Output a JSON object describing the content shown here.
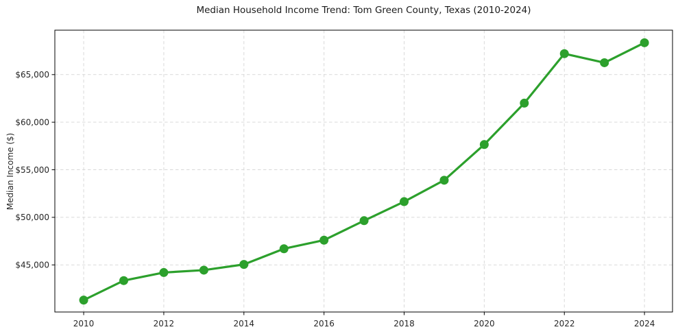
{
  "chart_data": {
    "type": "line",
    "title": "Median Household Income Trend: Tom Green County, Texas (2010-2024)",
    "xlabel": "",
    "ylabel": "Median Income ($)",
    "series": [
      {
        "name": "Median Household Income",
        "x": [
          2010,
          2011,
          2012,
          2013,
          2014,
          2015,
          2016,
          2017,
          2018,
          2019,
          2020,
          2021,
          2022,
          2023,
          2024
        ],
        "values": [
          41300,
          43350,
          44200,
          44450,
          45050,
          46700,
          47600,
          49650,
          51650,
          53900,
          57650,
          62000,
          67200,
          66250,
          68350
        ]
      }
    ],
    "x_ticks": [
      {
        "value": 2010,
        "label": "2010"
      },
      {
        "value": 2012,
        "label": "2012"
      },
      {
        "value": 2014,
        "label": "2014"
      },
      {
        "value": 2016,
        "label": "2016"
      },
      {
        "value": 2018,
        "label": "2018"
      },
      {
        "value": 2020,
        "label": "2020"
      },
      {
        "value": 2022,
        "label": "2022"
      },
      {
        "value": 2024,
        "label": "2024"
      }
    ],
    "y_ticks": [
      {
        "value": 45000,
        "label": "$45,000"
      },
      {
        "value": 50000,
        "label": "$50,000"
      },
      {
        "value": 55000,
        "label": "$55,000"
      },
      {
        "value": 60000,
        "label": "$60,000"
      },
      {
        "value": 65000,
        "label": "$65,000"
      }
    ],
    "xlim": [
      2009.28,
      2024.7
    ],
    "ylim": [
      40050,
      69670
    ],
    "grid": true,
    "legend_position": "none",
    "colors": {
      "line": "#2ca02c",
      "marker": "#2ca02c",
      "grid": "#d9d9d9",
      "axis": "#000000",
      "text": "#262626",
      "background": "#ffffff"
    }
  }
}
